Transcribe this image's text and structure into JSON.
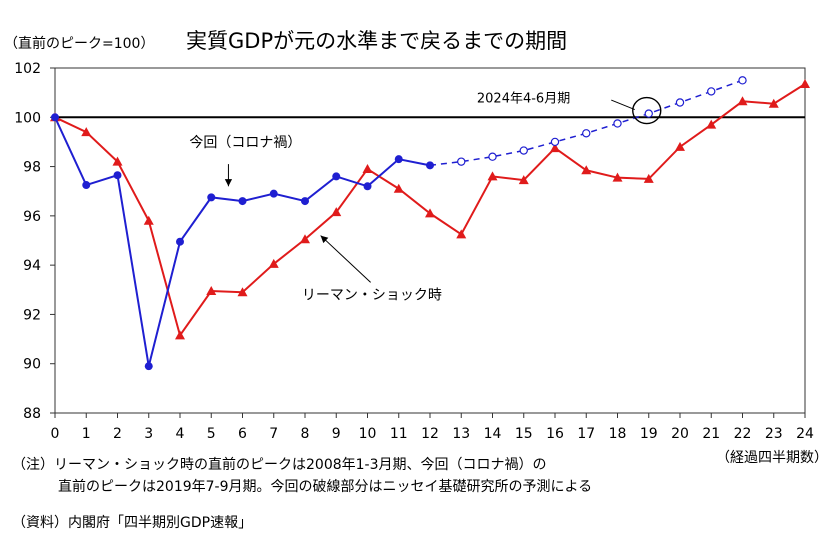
{
  "title": "実質GDPが元の水準まで戻るまでの期間",
  "unit_label": "（直前のピーク=100）",
  "chart_data": {
    "type": "line",
    "title": "実質GDPが元の水準まで戻るまでの期間",
    "ylabel": "（直前のピーク=100）",
    "xlabel": "（経過四半期数）",
    "xlim": [
      0,
      24
    ],
    "ylim": [
      88,
      102
    ],
    "x_ticks": [
      0,
      1,
      2,
      3,
      4,
      5,
      6,
      7,
      8,
      9,
      10,
      11,
      12,
      13,
      14,
      15,
      16,
      17,
      18,
      19,
      20,
      21,
      22,
      23,
      24
    ],
    "y_ticks": [
      88,
      90,
      92,
      94,
      96,
      98,
      100,
      102
    ],
    "reference_line": 100,
    "grid": false,
    "series": [
      {
        "name": "今回（コロナ禍）",
        "color": "#1f1fd1",
        "marker": "circle",
        "x": [
          0,
          1,
          2,
          3,
          4,
          5,
          6,
          7,
          8,
          9,
          10,
          11,
          12
        ],
        "values": [
          100.0,
          97.25,
          97.65,
          89.9,
          94.95,
          96.75,
          96.6,
          96.9,
          96.6,
          97.6,
          97.2,
          98.3,
          98.05
        ]
      },
      {
        "name": "今回（コロナ禍） 予測",
        "color": "#1f1fd1",
        "marker": "open-circle",
        "dashed": true,
        "x": [
          12,
          13,
          14,
          15,
          16,
          17,
          18,
          19,
          20,
          21,
          22
        ],
        "values": [
          98.05,
          98.2,
          98.4,
          98.65,
          99.0,
          99.35,
          99.75,
          100.15,
          100.6,
          101.05,
          101.5
        ]
      },
      {
        "name": "リーマン・ショック時",
        "color": "#e01b1b",
        "marker": "triangle",
        "x": [
          0,
          1,
          2,
          3,
          4,
          5,
          6,
          7,
          8,
          9,
          10,
          11,
          12,
          13,
          14,
          15,
          16,
          17,
          18,
          19,
          20,
          21,
          22,
          23,
          24
        ],
        "values": [
          100.0,
          99.4,
          98.2,
          95.8,
          91.15,
          92.95,
          92.9,
          94.05,
          95.05,
          96.15,
          97.9,
          97.1,
          96.1,
          95.25,
          97.6,
          97.45,
          98.75,
          97.85,
          97.55,
          97.5,
          98.8,
          99.7,
          100.65,
          100.55,
          101.35
        ]
      }
    ],
    "annotations": [
      {
        "label": "今回（コロナ禍）",
        "points_to_series": 0
      },
      {
        "label": "リーマン・ショック時",
        "points_to_series": 2
      },
      {
        "label": "2024年4-6月期",
        "circled_x": 19,
        "circled_y": 100.15
      }
    ]
  },
  "notes": [
    "（注）リーマン・ショック時の直前のピークは2008年1-3月期、今回（コロナ禍）の",
    "直前のピークは2019年7-9月期。今回の破線部分はニッセイ基礎研究所の予測による",
    "（資料）内閣府「四半期別GDP速報」"
  ]
}
